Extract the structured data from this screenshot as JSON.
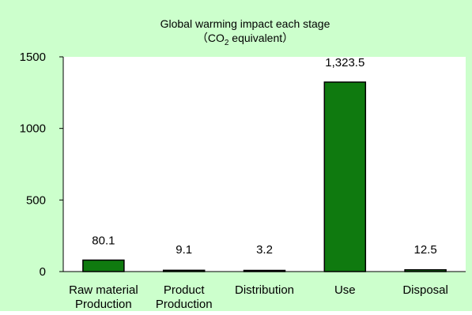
{
  "chart_data": {
    "type": "bar",
    "title_line1": "Global warming impact each stage",
    "title_line2_prefix": "（CO",
    "title_line2_subscript": "2",
    "title_line2_suffix": " equivalent）",
    "categories": [
      {
        "line1": "Raw material",
        "line2": "Production"
      },
      {
        "line1": "Product",
        "line2": "Production"
      },
      {
        "line1": "Distribution",
        "line2": ""
      },
      {
        "line1": "Use",
        "line2": ""
      },
      {
        "line1": "Disposal",
        "line2": ""
      }
    ],
    "values": [
      80.1,
      9.1,
      3.2,
      1323.5,
      12.5
    ],
    "data_labels": [
      "80.1",
      "9.1",
      "3.2",
      "1,323.5",
      "12.5"
    ],
    "y_ticks": [
      0,
      500,
      1000,
      1500
    ],
    "y_tick_labels": [
      "0",
      "500",
      "1000",
      "1500"
    ],
    "ylim": [
      0,
      1500
    ],
    "grid": false,
    "colors": {
      "background": "#ccffcc",
      "plot_area": "#ffffff",
      "bar_fill": "#0f7a0f",
      "bar_stroke": "#000000"
    }
  }
}
